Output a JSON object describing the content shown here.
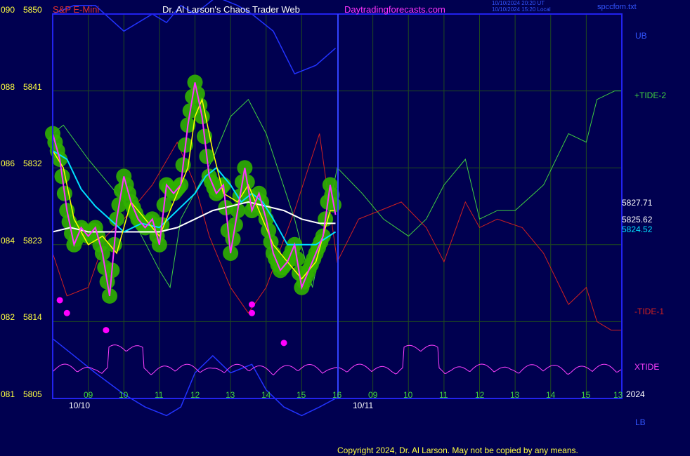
{
  "header": {
    "symbol": "S&P E-Mini",
    "title": "Dr. Al Larson's Chaos Trader Web",
    "site": "Daytradingforecasts.com",
    "timestamp_ut": "10/10/2024 20:20 UT",
    "timestamp_local": "10/10/2024 15:20 Local",
    "file": "spccfom.txt"
  },
  "footer": {
    "copyright": "Copyright 2024, Dr. Al Larson. May not be copied by any means."
  },
  "colors": {
    "background": "#000050",
    "grid": "#1f4a1f",
    "frame": "#2222ee",
    "tide_up": "#40d040",
    "tide_down": "#d02020",
    "price": "#ff33ff",
    "fast_avg": "#ffff00",
    "mid_avg": "#00e0ff",
    "slow_avg": "#ffffff",
    "bands": "#2233ff",
    "xtide": "#ff40ff",
    "markers": "#ff00ff",
    "dots": "#30b000"
  },
  "chart_data": {
    "type": "line",
    "title": "S&P E-Mini",
    "y_ticks": [
      {
        "code": "090",
        "price": "5850"
      },
      {
        "code": "088",
        "price": "5841"
      },
      {
        "code": "086",
        "price": "5832"
      },
      {
        "code": "084",
        "price": "5823"
      },
      {
        "code": "082",
        "price": "5814"
      },
      {
        "code": "081",
        "price": "5805"
      }
    ],
    "ylim": [
      5805,
      5850
    ],
    "x_ticks": [
      "09",
      "10",
      "11",
      "12",
      "13",
      "14",
      "15",
      "16",
      "09",
      "10",
      "11",
      "12",
      "13",
      "14",
      "15",
      "13"
    ],
    "x_range_hours": [
      8,
      24
    ],
    "date_labels": [
      "10/10",
      "10/11"
    ],
    "year_label": "2024",
    "divider_x": 16,
    "grid": true,
    "right_labels": {
      "ub": "UB",
      "tide_up": "+TIDE-2",
      "tide_down": "-TIDE-1",
      "xtide": "XTIDE",
      "lb": "LB",
      "last_values": [
        "5827.71",
        "5825.62",
        "5824.52"
      ]
    },
    "series": [
      {
        "name": "Price",
        "x": [
          8,
          8.2,
          8.4,
          8.6,
          8.8,
          9.0,
          9.2,
          9.4,
          9.6,
          9.8,
          10.0,
          10.2,
          10.4,
          10.6,
          10.8,
          11.0,
          11.2,
          11.4,
          11.6,
          11.8,
          12.0,
          12.2,
          12.4,
          12.6,
          12.8,
          13.0,
          13.2,
          13.4,
          13.6,
          13.8,
          14.0,
          14.2,
          14.4,
          14.6,
          14.8,
          15.0,
          15.2,
          15.4,
          15.6,
          15.8,
          15.95
        ],
        "y": [
          5836,
          5833,
          5827,
          5823,
          5825,
          5824,
          5825,
          5822,
          5817,
          5826,
          5831,
          5828,
          5826,
          5825,
          5826,
          5823,
          5830,
          5829,
          5830,
          5837,
          5842,
          5838,
          5831,
          5829,
          5830,
          5822,
          5827,
          5832,
          5827,
          5829,
          5826,
          5822,
          5820,
          5821,
          5823,
          5818,
          5820,
          5822,
          5824,
          5830,
          5826.5
        ]
      },
      {
        "name": "Fast average",
        "x": [
          8,
          8.3,
          8.6,
          9.0,
          9.4,
          9.8,
          10.2,
          10.6,
          11.0,
          11.4,
          11.8,
          12.0,
          12.2,
          12.5,
          12.8,
          13.2,
          13.5,
          13.8,
          14.2,
          14.6,
          15.0,
          15.4,
          15.8,
          15.95
        ],
        "y": [
          5834,
          5832,
          5826,
          5823,
          5824,
          5822,
          5828,
          5826,
          5824,
          5828,
          5832,
          5838,
          5840,
          5834,
          5829,
          5828,
          5830,
          5827,
          5823,
          5821,
          5819,
          5821,
          5827,
          5827
        ]
      },
      {
        "name": "Mid average",
        "x": [
          8,
          8.4,
          8.8,
          9.2,
          9.6,
          10.0,
          10.5,
          11.0,
          11.5,
          12.0,
          12.3,
          12.6,
          13.0,
          13.3,
          13.6,
          13.9,
          14.2,
          14.6,
          15.0,
          15.4,
          15.95
        ],
        "y": [
          5834,
          5833,
          5829.5,
          5827.5,
          5826,
          5824.5,
          5825.5,
          5825,
          5827,
          5829,
          5831,
          5832,
          5830,
          5828,
          5829,
          5828,
          5826,
          5823,
          5823,
          5823,
          5824.5
        ]
      },
      {
        "name": "Slow average",
        "x": [
          8,
          8.5,
          9.0,
          9.5,
          10.0,
          10.5,
          11.0,
          11.5,
          12.0,
          12.5,
          13.0,
          13.5,
          14.0,
          14.5,
          15.0,
          15.5,
          15.95
        ],
        "y": [
          5824.5,
          5825,
          5824.5,
          5824.5,
          5824.5,
          5824.5,
          5824.5,
          5825,
          5826,
          5827,
          5827.5,
          5828,
          5827.5,
          5827,
          5826,
          5825.5,
          5825.5
        ]
      },
      {
        "name": "+TIDE-2",
        "x": [
          8,
          8.3,
          9.0,
          10.0,
          11.0,
          11.3,
          11.6,
          12.5,
          13.0,
          13.5,
          14.0,
          14.8,
          15.3,
          16,
          16.7,
          17.3,
          18.0,
          18.5,
          19.0,
          19.6,
          20.0,
          20.5,
          21.0,
          21.8,
          22.5,
          23.0,
          23.3,
          23.8,
          24
        ],
        "y": [
          5836,
          5837,
          5833,
          5828,
          5820,
          5818,
          5826,
          5833,
          5838,
          5840,
          5836,
          5826,
          5818,
          5832,
          5829,
          5826,
          5824,
          5826,
          5830,
          5833,
          5826,
          5827,
          5827,
          5830,
          5836,
          5835,
          5840,
          5841,
          5841
        ]
      },
      {
        "name": "-TIDE-1",
        "x": [
          8,
          8.4,
          9.0,
          9.5,
          10.0,
          10.8,
          11.5,
          12.0,
          12.4,
          13.0,
          13.5,
          14.0,
          14.8,
          15.5,
          16,
          16.6,
          17.2,
          17.8,
          18.5,
          19.0,
          19.6,
          20.0,
          20.5,
          21.2,
          21.8,
          22.5,
          23.0,
          23.3,
          23.7,
          24
        ],
        "y": [
          5822,
          5817,
          5818,
          5824,
          5826,
          5830,
          5835,
          5830,
          5824,
          5818,
          5815,
          5818,
          5827,
          5836,
          5821,
          5826,
          5827,
          5828,
          5825,
          5821,
          5828,
          5825,
          5826,
          5825,
          5822,
          5816,
          5818,
          5814,
          5813,
          5813
        ]
      },
      {
        "name": "UB",
        "x": [
          8,
          8.6,
          9.2,
          10.0,
          10.8,
          11.2,
          11.6,
          12.0,
          12.6,
          13.2,
          13.6,
          14.2,
          14.8,
          15.4,
          15.95
        ],
        "y": [
          5850,
          5851,
          5851,
          5848,
          5850,
          5849,
          5851,
          5850,
          5852,
          5851,
          5850,
          5848,
          5843,
          5844,
          5846
        ]
      },
      {
        "name": "LB",
        "x": [
          8,
          8.6,
          9.2,
          10.0,
          10.6,
          11.2,
          11.6,
          12.0,
          12.5,
          13.0,
          13.6,
          14.0,
          14.5,
          15.0,
          15.5,
          15.95
        ],
        "y": [
          5812,
          5810,
          5808,
          5805.5,
          5804,
          5803,
          5804,
          5808,
          5810,
          5808,
          5809,
          5806,
          5804,
          5803,
          5804,
          5805
        ]
      }
    ],
    "markers": [
      {
        "x": 8.2,
        "y": 5816.5
      },
      {
        "x": 8.4,
        "y": 5815
      },
      {
        "x": 9.5,
        "y": 5813
      },
      {
        "x": 13.6,
        "y": 5816
      },
      {
        "x": 13.6,
        "y": 5815
      },
      {
        "x": 14.5,
        "y": 5811.5
      }
    ]
  }
}
